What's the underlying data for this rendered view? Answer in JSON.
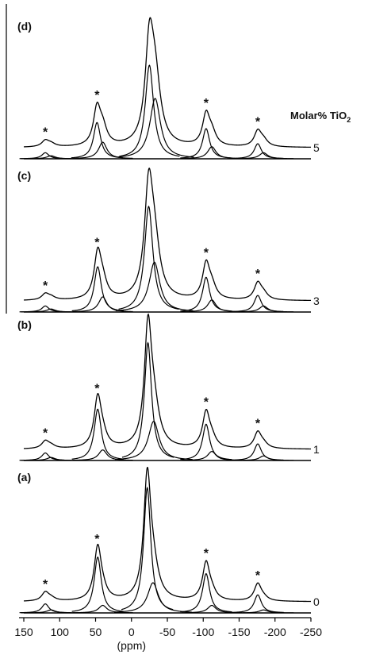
{
  "chart_data": {
    "type": "line",
    "xlabel": "(ppm)",
    "x_axis": {
      "reversed": true,
      "xlim": [
        150,
        -250
      ],
      "ticks": [
        150,
        100,
        50,
        0,
        -50,
        -100,
        -150,
        -200,
        -250
      ],
      "tick_labels": [
        "150",
        "100",
        "50",
        "0",
        "-50",
        "-100",
        "-150",
        "-200",
        "-250"
      ]
    },
    "legend": {
      "title_main": "Molar% TiO",
      "title_sub": "2"
    },
    "peak_marker": "*",
    "sidebands_marked_at_ppm": [
      120,
      48,
      -104,
      -176
    ],
    "panels": [
      {
        "label": "(d)",
        "molar_percent_label": "5",
        "total_height": 1.0,
        "components": [
          {
            "center": -25,
            "height": 0.62,
            "width": 7
          },
          {
            "center": -33,
            "height": 0.4,
            "width": 9
          },
          {
            "center": 48,
            "height": 0.24,
            "width": 6
          },
          {
            "center": 40,
            "height": 0.11,
            "width": 7
          },
          {
            "center": -104,
            "height": 0.2,
            "width": 6
          },
          {
            "center": -112,
            "height": 0.08,
            "width": 7
          },
          {
            "center": -176,
            "height": 0.1,
            "width": 6
          },
          {
            "center": -184,
            "height": 0.04,
            "width": 7
          },
          {
            "center": 120,
            "height": 0.04,
            "width": 6
          },
          {
            "center": 112,
            "height": 0.02,
            "width": 7
          }
        ]
      },
      {
        "label": "(c)",
        "molar_percent_label": "3",
        "total_height": 0.98,
        "components": [
          {
            "center": -24,
            "height": 0.7,
            "width": 7
          },
          {
            "center": -32,
            "height": 0.33,
            "width": 9
          },
          {
            "center": 47,
            "height": 0.3,
            "width": 6
          },
          {
            "center": 40,
            "height": 0.1,
            "width": 7
          },
          {
            "center": -104,
            "height": 0.23,
            "width": 6
          },
          {
            "center": -112,
            "height": 0.08,
            "width": 7
          },
          {
            "center": -176,
            "height": 0.11,
            "width": 6
          },
          {
            "center": -184,
            "height": 0.04,
            "width": 7
          },
          {
            "center": 120,
            "height": 0.04,
            "width": 6
          },
          {
            "center": 112,
            "height": 0.02,
            "width": 7
          }
        ]
      },
      {
        "label": "(b)",
        "molar_percent_label": "1",
        "total_height": 0.96,
        "components": [
          {
            "center": -23,
            "height": 0.78,
            "width": 6
          },
          {
            "center": -31,
            "height": 0.26,
            "width": 9
          },
          {
            "center": 47,
            "height": 0.34,
            "width": 6
          },
          {
            "center": 40,
            "height": 0.07,
            "width": 7
          },
          {
            "center": -104,
            "height": 0.24,
            "width": 6
          },
          {
            "center": -112,
            "height": 0.06,
            "width": 7
          },
          {
            "center": -176,
            "height": 0.11,
            "width": 6
          },
          {
            "center": -184,
            "height": 0.03,
            "width": 7
          },
          {
            "center": 120,
            "height": 0.05,
            "width": 6
          },
          {
            "center": 112,
            "height": 0.02,
            "width": 7
          }
        ]
      },
      {
        "label": "(a)",
        "molar_percent_label": "0",
        "total_height": 0.94,
        "components": [
          {
            "center": -22,
            "height": 0.83,
            "width": 6
          },
          {
            "center": -30,
            "height": 0.2,
            "width": 9
          },
          {
            "center": 47,
            "height": 0.37,
            "width": 6
          },
          {
            "center": 40,
            "height": 0.05,
            "width": 7
          },
          {
            "center": -104,
            "height": 0.26,
            "width": 6
          },
          {
            "center": -112,
            "height": 0.05,
            "width": 7
          },
          {
            "center": -176,
            "height": 0.12,
            "width": 6
          },
          {
            "center": -184,
            "height": 0.02,
            "width": 7
          },
          {
            "center": 120,
            "height": 0.06,
            "width": 6
          },
          {
            "center": 112,
            "height": 0.02,
            "width": 7
          }
        ]
      }
    ]
  }
}
